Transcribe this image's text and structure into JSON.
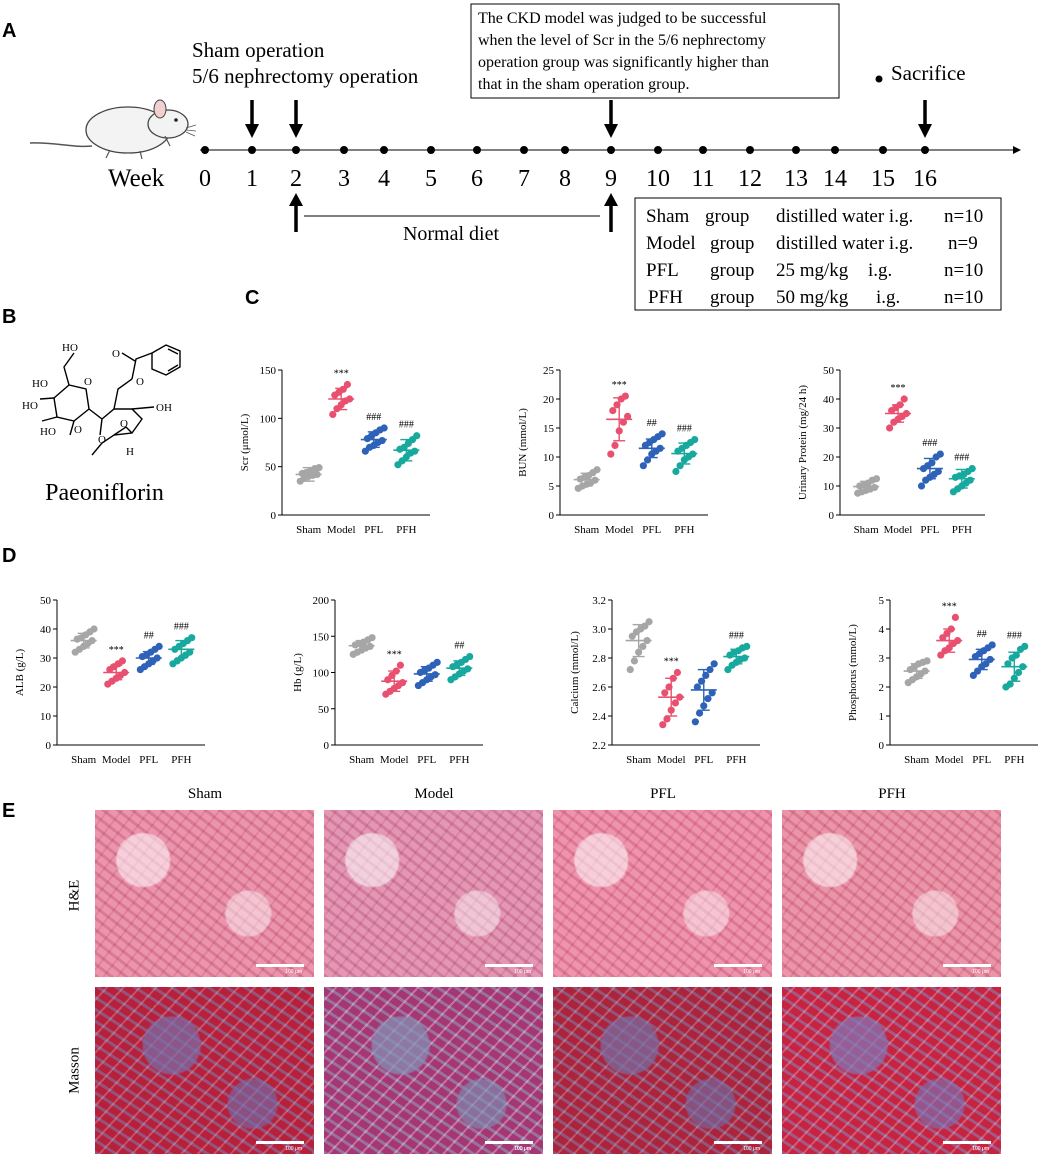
{
  "panels": {
    "a": "A",
    "b": "B",
    "c": "C",
    "d": "D",
    "e": "E"
  },
  "timeline": {
    "op_label_1": "Sham operation",
    "op_label_2": "5/6 nephrectomy operation",
    "note_lines": [
      "The CKD model was judged to be successful",
      "when the level of Scr in the 5/6 nephrectomy",
      "operation group was significantly higher than",
      "that in the sham operation group."
    ],
    "sacrifice": "Sacrifice",
    "week_label": "Week",
    "weeks": [
      "0",
      "1",
      "2",
      "3",
      "4",
      "5",
      "6",
      "7",
      "8",
      "9",
      "10",
      "11",
      "12",
      "13",
      "14",
      "15",
      "16"
    ],
    "diet": "Normal diet",
    "groups": [
      [
        "Sham",
        "group",
        "distilled water i.g.",
        "n=10"
      ],
      [
        "Model",
        "group",
        "distilled water i.g.",
        "n=9"
      ],
      [
        "PFL",
        "group",
        "25 mg/kg",
        "i.g.",
        "n=10"
      ],
      [
        "PFH",
        "group",
        "50 mg/kg",
        "i.g.",
        "n=10"
      ]
    ]
  },
  "compound": {
    "name": "Paeoniflorin",
    "atoms": [
      "HO",
      "HO",
      "HO",
      "HO",
      "O",
      "O",
      "O",
      "O",
      "OH",
      "O",
      "H",
      "O"
    ]
  },
  "chart_data": [
    {
      "type": "scatter",
      "ylabel": "Scr (μmol/L)",
      "ylim": [
        0,
        150
      ],
      "yticks": [
        "0",
        "50",
        "100",
        "150"
      ],
      "categories": [
        "Sham",
        "Model",
        "PFL",
        "PFH"
      ],
      "annotations": [
        "",
        "***",
        "###",
        "###"
      ],
      "series": [
        {
          "mean": 42,
          "sd": 7,
          "points": [
            35,
            38,
            40,
            41,
            42,
            43,
            44,
            46,
            48,
            49
          ]
        },
        {
          "mean": 120,
          "sd": 11,
          "points": [
            104,
            110,
            114,
            118,
            120,
            124,
            127,
            130,
            135
          ]
        },
        {
          "mean": 78,
          "sd": 8,
          "points": [
            66,
            70,
            72,
            75,
            77,
            79,
            82,
            85,
            88,
            90
          ]
        },
        {
          "mean": 67,
          "sd": 11,
          "points": [
            52,
            56,
            60,
            64,
            66,
            68,
            70,
            74,
            78,
            82
          ]
        }
      ]
    },
    {
      "type": "scatter",
      "ylabel": "BUN (mmol/L)",
      "ylim": [
        0,
        25
      ],
      "yticks": [
        "0",
        "5",
        "10",
        "15",
        "20",
        "25"
      ],
      "categories": [
        "Sham",
        "Model",
        "PFL",
        "PFH"
      ],
      "annotations": [
        "",
        "***",
        "##",
        "###"
      ],
      "series": [
        {
          "mean": 6.1,
          "sd": 1.1,
          "points": [
            4.6,
            5.0,
            5.3,
            5.6,
            6.0,
            6.2,
            6.5,
            6.8,
            7.3,
            7.8
          ]
        },
        {
          "mean": 16.5,
          "sd": 3.7,
          "points": [
            10.5,
            12.0,
            14.5,
            16.0,
            17.0,
            18.0,
            19.0,
            20.0,
            20.5
          ]
        },
        {
          "mean": 11.5,
          "sd": 1.6,
          "points": [
            8.5,
            9.5,
            10.5,
            11.0,
            11.5,
            12.0,
            12.5,
            13.0,
            13.5,
            14.0
          ]
        },
        {
          "mean": 10.6,
          "sd": 1.8,
          "points": [
            7.5,
            8.5,
            9.5,
            10.0,
            10.5,
            11.0,
            11.5,
            12.0,
            12.5,
            13.0
          ]
        }
      ]
    },
    {
      "type": "scatter",
      "ylabel": "Urinary Protein (mg/24 h)",
      "ylim": [
        0,
        50
      ],
      "yticks": [
        "0",
        "10",
        "20",
        "30",
        "40",
        "50"
      ],
      "categories": [
        "Sham",
        "Model",
        "PFL",
        "PFH"
      ],
      "annotations": [
        "",
        "***",
        "###",
        "###"
      ],
      "series": [
        {
          "mean": 9.8,
          "sd": 1.8,
          "points": [
            7.5,
            8.0,
            8.5,
            9.0,
            9.5,
            10.0,
            10.5,
            11.0,
            12.0,
            12.5
          ]
        },
        {
          "mean": 35,
          "sd": 3,
          "points": [
            30,
            32,
            33,
            34,
            35,
            36,
            37,
            38,
            40
          ]
        },
        {
          "mean": 16,
          "sd": 3.5,
          "points": [
            10,
            12,
            13,
            14,
            15,
            16,
            17,
            18,
            20,
            21
          ]
        },
        {
          "mean": 12.5,
          "sd": 3.2,
          "points": [
            8,
            9,
            10,
            11,
            12,
            13,
            13.5,
            14,
            15,
            16
          ]
        }
      ]
    },
    {
      "type": "scatter",
      "ylabel": "ALB (g/L)",
      "ylim": [
        0,
        50
      ],
      "yticks": [
        "0",
        "10",
        "20",
        "30",
        "40",
        "50"
      ],
      "categories": [
        "Sham",
        "Model",
        "PFL",
        "PFH"
      ],
      "annotations": [
        "",
        "***",
        "##",
        "###"
      ],
      "series": [
        {
          "mean": 36,
          "sd": 2.5,
          "points": [
            32,
            33,
            34,
            35,
            36,
            36.5,
            37,
            38,
            39,
            40
          ]
        },
        {
          "mean": 25,
          "sd": 2.5,
          "points": [
            21,
            22,
            23,
            24,
            25,
            26,
            27,
            28,
            29
          ]
        },
        {
          "mean": 30,
          "sd": 2.2,
          "points": [
            26,
            27,
            28,
            29,
            30,
            30.5,
            31,
            32,
            33,
            34
          ]
        },
        {
          "mean": 33,
          "sd": 3,
          "points": [
            28,
            29,
            30,
            31,
            32,
            33,
            34,
            35,
            36,
            37
          ]
        }
      ]
    },
    {
      "type": "scatter",
      "ylabel": "Hb (g/L)",
      "ylim": [
        0,
        200
      ],
      "yticks": [
        "0",
        "50",
        "100",
        "150",
        "200"
      ],
      "categories": [
        "Sham",
        "Model",
        "PFL",
        "PFH"
      ],
      "annotations": [
        "",
        "***",
        "",
        "##"
      ],
      "series": [
        {
          "mean": 137,
          "sd": 7,
          "points": [
            125,
            128,
            131,
            134,
            136,
            138,
            140,
            142,
            145,
            148
          ]
        },
        {
          "mean": 88,
          "sd": 14,
          "points": [
            70,
            74,
            78,
            82,
            86,
            90,
            96,
            102,
            110
          ]
        },
        {
          "mean": 98,
          "sd": 10,
          "points": [
            82,
            86,
            90,
            94,
            97,
            100,
            103,
            106,
            110,
            114
          ]
        },
        {
          "mean": 106,
          "sd": 10,
          "points": [
            90,
            94,
            98,
            102,
            105,
            108,
            111,
            114,
            118,
            122
          ]
        }
      ]
    },
    {
      "type": "scatter",
      "ylabel": "Calcium (mmol/L)",
      "ylim": [
        2.2,
        3.2
      ],
      "yticks": [
        "2.2",
        "2.4",
        "2.6",
        "2.8",
        "3.0",
        "3.2"
      ],
      "categories": [
        "Sham",
        "Model",
        "PFL",
        "PFH"
      ],
      "annotations": [
        "",
        "***",
        "",
        "###"
      ],
      "series": [
        {
          "mean": 2.92,
          "sd": 0.11,
          "points": [
            2.72,
            2.78,
            2.84,
            2.88,
            2.92,
            2.95,
            2.98,
            3.0,
            3.02,
            3.05
          ]
        },
        {
          "mean": 2.53,
          "sd": 0.13,
          "points": [
            2.34,
            2.38,
            2.44,
            2.49,
            2.53,
            2.56,
            2.6,
            2.66,
            2.7
          ]
        },
        {
          "mean": 2.58,
          "sd": 0.14,
          "points": [
            2.36,
            2.42,
            2.47,
            2.52,
            2.56,
            2.6,
            2.64,
            2.68,
            2.72,
            2.76
          ]
        },
        {
          "mean": 2.81,
          "sd": 0.05,
          "points": [
            2.72,
            2.75,
            2.77,
            2.79,
            2.8,
            2.82,
            2.84,
            2.85,
            2.87,
            2.88
          ]
        }
      ]
    },
    {
      "type": "scatter",
      "ylabel": "Phosphorus (mmol/L)",
      "ylim": [
        0,
        5
      ],
      "yticks": [
        "0",
        "1",
        "2",
        "3",
        "4",
        "5"
      ],
      "categories": [
        "Sham",
        "Model",
        "PFL",
        "PFH"
      ],
      "annotations": [
        "",
        "***",
        "##",
        "###"
      ],
      "series": [
        {
          "mean": 2.55,
          "sd": 0.25,
          "points": [
            2.15,
            2.25,
            2.35,
            2.45,
            2.55,
            2.6,
            2.7,
            2.8,
            2.85,
            2.9
          ]
        },
        {
          "mean": 3.6,
          "sd": 0.4,
          "points": [
            3.1,
            3.25,
            3.35,
            3.5,
            3.6,
            3.7,
            3.85,
            4.0,
            4.4
          ]
        },
        {
          "mean": 2.95,
          "sd": 0.35,
          "points": [
            2.4,
            2.55,
            2.7,
            2.8,
            2.95,
            3.05,
            3.15,
            3.25,
            3.35,
            3.45
          ]
        },
        {
          "mean": 2.7,
          "sd": 0.5,
          "points": [
            2.0,
            2.1,
            2.3,
            2.5,
            2.7,
            2.8,
            3.0,
            3.1,
            3.3,
            3.4
          ]
        }
      ]
    }
  ],
  "colors": {
    "Sham": "#a6a6a6",
    "Model": "#e9506f",
    "PFL": "#2e62b8",
    "PFH": "#17a89e"
  },
  "histology": {
    "columns": [
      "Sham",
      "Model",
      "PFL",
      "PFH"
    ],
    "rows": [
      "H&E",
      "Masson"
    ],
    "scale_bar": "100 μm"
  }
}
